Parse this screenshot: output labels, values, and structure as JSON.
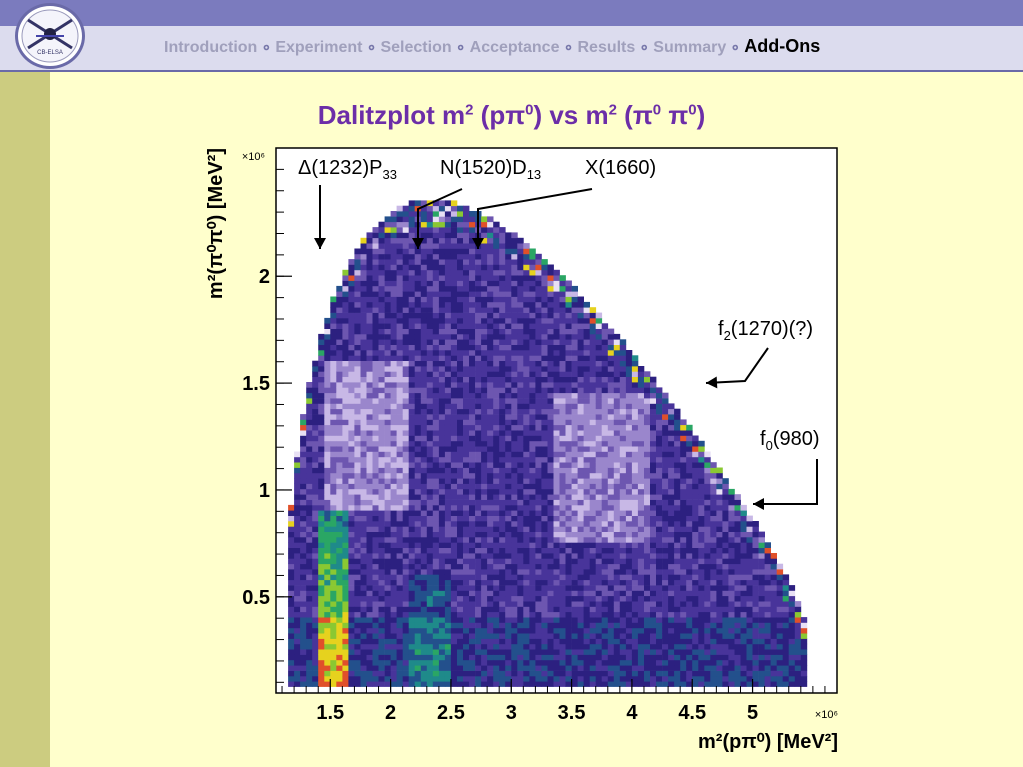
{
  "nav": {
    "items": [
      "Introduction",
      "Experiment",
      "Selection",
      "Acceptance",
      "Results",
      "Summary",
      "Add-Ons"
    ],
    "active_index": 6,
    "separator": "∘"
  },
  "logo": {
    "text": "CB-ELSA"
  },
  "slide": {
    "title_main": "Dalitzplot m",
    "title_sup1": "2",
    "title_mid": " (pπ",
    "title_sup2": "0",
    "title_vs": ")  vs  m",
    "title_sup3": "2",
    "title_mid2": " (π",
    "title_sup4": "0",
    "title_mid3": " π",
    "title_sup5": "0",
    "title_end": ")"
  },
  "chart_data": {
    "type": "heatmap",
    "xlabel": "m²(pπ⁰) [MeV²]",
    "ylabel": "m²(π⁰π⁰) [MeV²]",
    "x_multiplier": "×10⁶",
    "y_multiplier": "×10⁶",
    "xlim": [
      1.05,
      5.7
    ],
    "ylim": [
      0.05,
      2.6
    ],
    "x_ticks": [
      1.5,
      2,
      2.5,
      3,
      3.5,
      4,
      4.5,
      5
    ],
    "x_tick_labels": [
      "1.5",
      "2",
      "2.5",
      "3",
      "3.5",
      "4",
      "4.5",
      "5"
    ],
    "y_ticks": [
      0.5,
      1,
      1.5,
      2
    ],
    "y_tick_labels": [
      "0.5",
      "1",
      "1.5",
      "2"
    ],
    "palette": [
      "#e8e0f4",
      "#c8b8e6",
      "#9a86cc",
      "#6d56b0",
      "#48349a",
      "#2c2080",
      "#23508c",
      "#1f8a8a",
      "#2aa664",
      "#8ac832",
      "#e6d21e",
      "#e0502a"
    ],
    "annotations": [
      {
        "label": "Δ(1232)P",
        "sub": "33",
        "x": 1.47,
        "y": 2.4
      },
      {
        "label": "N(1520)D",
        "sub": "13",
        "x": 2.3,
        "y": 2.4
      },
      {
        "label": "X(1660)",
        "sub": "",
        "x": 2.75,
        "y": 2.4
      },
      {
        "label": "f",
        "sub": "2",
        "tail": "(1270)(?)",
        "x": 4.5,
        "y": 1.5
      },
      {
        "label": "f",
        "sub": "0",
        "tail": "(980)",
        "x": 4.6,
        "y": 0.95
      }
    ]
  }
}
